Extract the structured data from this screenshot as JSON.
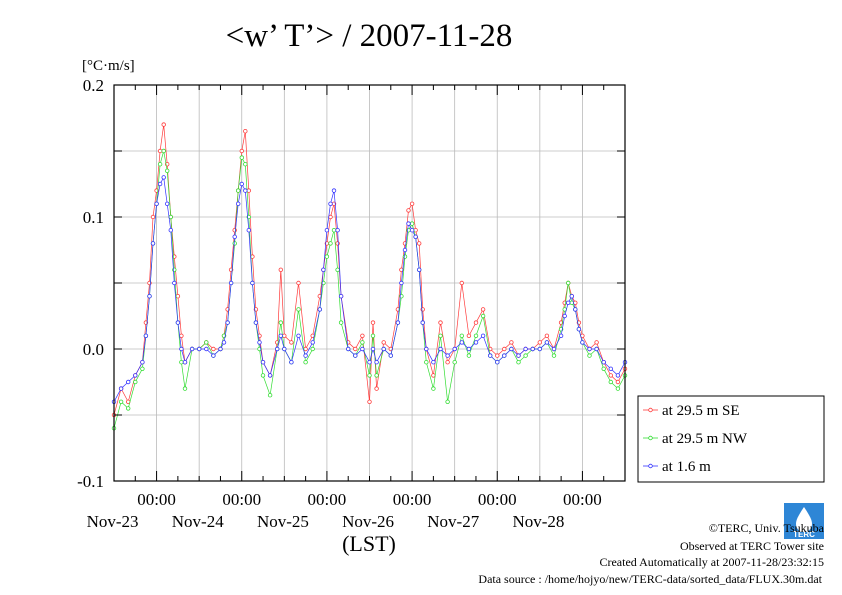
{
  "chart_data": {
    "type": "line",
    "title": "<w’ T’> / 2007-11-28",
    "ylabel": "[°C·m/s]",
    "xlabel": "(LST)",
    "ylim": [
      -0.1,
      0.2
    ],
    "yticks": [
      -0.1,
      0.0,
      0.1,
      0.2
    ],
    "ytick_labels": [
      "-0.1",
      "0.0",
      "0.1",
      "0.2"
    ],
    "xlim": [
      0,
      144
    ],
    "x_unit": "hours since Nov-22 12:00",
    "xticks": [
      12,
      36,
      60,
      84,
      108,
      132
    ],
    "xtick_time_label": "00:00",
    "xtick_date_labels": [
      "Nov-23",
      "Nov-24",
      "Nov-25",
      "Nov-26",
      "Nov-27",
      "Nov-28"
    ],
    "grid": true,
    "legend_position": "right",
    "series": [
      {
        "name": "at 29.5 m SE",
        "color": "#ff3b3b",
        "points": [
          [
            0,
            -0.05
          ],
          [
            2,
            -0.03
          ],
          [
            4,
            -0.04
          ],
          [
            6,
            -0.02
          ],
          [
            8,
            -0.01
          ],
          [
            9,
            0.02
          ],
          [
            10,
            0.05
          ],
          [
            11,
            0.1
          ],
          [
            12,
            0.12
          ],
          [
            13,
            0.15
          ],
          [
            14,
            0.17
          ],
          [
            15,
            0.14
          ],
          [
            16,
            0.1
          ],
          [
            17,
            0.07
          ],
          [
            18,
            0.04
          ],
          [
            19,
            0.01
          ],
          [
            20,
            -0.01
          ],
          [
            22,
            0.0
          ],
          [
            24,
            0.0
          ],
          [
            26,
            0.005
          ],
          [
            28,
            0.0
          ],
          [
            30,
            0.0
          ],
          [
            31,
            0.01
          ],
          [
            32,
            0.03
          ],
          [
            33,
            0.06
          ],
          [
            34,
            0.09
          ],
          [
            35,
            0.12
          ],
          [
            36,
            0.15
          ],
          [
            37,
            0.165
          ],
          [
            38,
            0.12
          ],
          [
            39,
            0.07
          ],
          [
            40,
            0.03
          ],
          [
            41,
            0.01
          ],
          [
            42,
            -0.01
          ],
          [
            44,
            -0.02
          ],
          [
            46,
            0.005
          ],
          [
            47,
            0.06
          ],
          [
            48,
            0.01
          ],
          [
            50,
            0.005
          ],
          [
            52,
            0.05
          ],
          [
            54,
            0.0
          ],
          [
            56,
            0.01
          ],
          [
            58,
            0.04
          ],
          [
            59,
            0.06
          ],
          [
            60,
            0.08
          ],
          [
            61,
            0.1
          ],
          [
            62,
            0.11
          ],
          [
            63,
            0.08
          ],
          [
            64,
            0.04
          ],
          [
            66,
            0.005
          ],
          [
            68,
            0.0
          ],
          [
            70,
            0.01
          ],
          [
            72,
            -0.04
          ],
          [
            73,
            0.02
          ],
          [
            74,
            -0.03
          ],
          [
            76,
            0.005
          ],
          [
            78,
            0.0
          ],
          [
            80,
            0.03
          ],
          [
            81,
            0.06
          ],
          [
            82,
            0.08
          ],
          [
            83,
            0.105
          ],
          [
            84,
            0.11
          ],
          [
            85,
            0.09
          ],
          [
            86,
            0.08
          ],
          [
            87,
            0.03
          ],
          [
            88,
            0.0
          ],
          [
            90,
            -0.02
          ],
          [
            92,
            0.02
          ],
          [
            94,
            -0.01
          ],
          [
            96,
            0.0
          ],
          [
            98,
            0.05
          ],
          [
            100,
            0.01
          ],
          [
            102,
            0.02
          ],
          [
            104,
            0.03
          ],
          [
            106,
            0.0
          ],
          [
            108,
            -0.005
          ],
          [
            110,
            0.0
          ],
          [
            112,
            0.005
          ],
          [
            114,
            -0.005
          ],
          [
            116,
            0.0
          ],
          [
            118,
            0.0
          ],
          [
            120,
            0.005
          ],
          [
            122,
            0.01
          ],
          [
            124,
            0.0
          ],
          [
            126,
            0.02
          ],
          [
            127,
            0.035
          ],
          [
            128,
            0.05
          ],
          [
            129,
            0.04
          ],
          [
            130,
            0.035
          ],
          [
            131,
            0.02
          ],
          [
            132,
            0.01
          ],
          [
            134,
            0.0
          ],
          [
            136,
            0.005
          ],
          [
            138,
            -0.01
          ],
          [
            140,
            -0.02
          ],
          [
            142,
            -0.025
          ],
          [
            144,
            -0.015
          ]
        ]
      },
      {
        "name": "at 29.5 m NW",
        "color": "#33dd33",
        "points": [
          [
            0,
            -0.06
          ],
          [
            2,
            -0.04
          ],
          [
            4,
            -0.045
          ],
          [
            6,
            -0.025
          ],
          [
            8,
            -0.015
          ],
          [
            9,
            0.01
          ],
          [
            10,
            0.04
          ],
          [
            11,
            0.08
          ],
          [
            12,
            0.11
          ],
          [
            13,
            0.14
          ],
          [
            14,
            0.15
          ],
          [
            15,
            0.135
          ],
          [
            16,
            0.1
          ],
          [
            17,
            0.06
          ],
          [
            18,
            0.02
          ],
          [
            19,
            -0.01
          ],
          [
            20,
            -0.03
          ],
          [
            22,
            0.0
          ],
          [
            24,
            0.0
          ],
          [
            26,
            0.005
          ],
          [
            28,
            -0.005
          ],
          [
            30,
            0.0
          ],
          [
            31,
            0.01
          ],
          [
            32,
            0.02
          ],
          [
            33,
            0.05
          ],
          [
            34,
            0.08
          ],
          [
            35,
            0.12
          ],
          [
            36,
            0.145
          ],
          [
            37,
            0.14
          ],
          [
            38,
            0.1
          ],
          [
            39,
            0.05
          ],
          [
            40,
            0.02
          ],
          [
            41,
            0.0
          ],
          [
            42,
            -0.02
          ],
          [
            44,
            -0.035
          ],
          [
            46,
            0.0
          ],
          [
            47,
            0.02
          ],
          [
            48,
            0.0
          ],
          [
            50,
            -0.01
          ],
          [
            52,
            0.03
          ],
          [
            54,
            -0.01
          ],
          [
            56,
            0.0
          ],
          [
            58,
            0.03
          ],
          [
            59,
            0.05
          ],
          [
            60,
            0.07
          ],
          [
            61,
            0.08
          ],
          [
            62,
            0.09
          ],
          [
            63,
            0.06
          ],
          [
            64,
            0.02
          ],
          [
            66,
            0.0
          ],
          [
            68,
            -0.005
          ],
          [
            70,
            0.005
          ],
          [
            72,
            -0.02
          ],
          [
            73,
            0.01
          ],
          [
            74,
            -0.02
          ],
          [
            76,
            0.0
          ],
          [
            78,
            -0.005
          ],
          [
            80,
            0.02
          ],
          [
            81,
            0.04
          ],
          [
            82,
            0.07
          ],
          [
            83,
            0.09
          ],
          [
            84,
            0.095
          ],
          [
            85,
            0.085
          ],
          [
            86,
            0.06
          ],
          [
            87,
            0.02
          ],
          [
            88,
            -0.01
          ],
          [
            90,
            -0.03
          ],
          [
            92,
            0.01
          ],
          [
            94,
            -0.04
          ],
          [
            96,
            -0.01
          ],
          [
            98,
            0.01
          ],
          [
            100,
            -0.005
          ],
          [
            102,
            0.01
          ],
          [
            104,
            0.025
          ],
          [
            106,
            -0.005
          ],
          [
            108,
            -0.01
          ],
          [
            110,
            -0.005
          ],
          [
            112,
            0.0
          ],
          [
            114,
            -0.01
          ],
          [
            116,
            -0.005
          ],
          [
            118,
            0.0
          ],
          [
            120,
            0.0
          ],
          [
            122,
            0.005
          ],
          [
            124,
            -0.005
          ],
          [
            126,
            0.015
          ],
          [
            127,
            0.03
          ],
          [
            128,
            0.05
          ],
          [
            129,
            0.035
          ],
          [
            130,
            0.03
          ],
          [
            131,
            0.015
          ],
          [
            132,
            0.005
          ],
          [
            134,
            -0.005
          ],
          [
            136,
            0.0
          ],
          [
            138,
            -0.015
          ],
          [
            140,
            -0.025
          ],
          [
            142,
            -0.03
          ],
          [
            144,
            -0.02
          ]
        ]
      },
      {
        "name": "at 1.6 m",
        "color": "#3333ff",
        "points": [
          [
            0,
            -0.04
          ],
          [
            2,
            -0.03
          ],
          [
            4,
            -0.025
          ],
          [
            6,
            -0.02
          ],
          [
            8,
            -0.01
          ],
          [
            9,
            0.01
          ],
          [
            10,
            0.04
          ],
          [
            11,
            0.08
          ],
          [
            12,
            0.11
          ],
          [
            13,
            0.125
          ],
          [
            14,
            0.13
          ],
          [
            15,
            0.11
          ],
          [
            16,
            0.09
          ],
          [
            17,
            0.05
          ],
          [
            18,
            0.02
          ],
          [
            19,
            0.0
          ],
          [
            20,
            -0.01
          ],
          [
            22,
            0.0
          ],
          [
            24,
            0.0
          ],
          [
            26,
            0.0
          ],
          [
            28,
            -0.005
          ],
          [
            30,
            0.0
          ],
          [
            31,
            0.005
          ],
          [
            32,
            0.02
          ],
          [
            33,
            0.05
          ],
          [
            34,
            0.085
          ],
          [
            35,
            0.11
          ],
          [
            36,
            0.125
          ],
          [
            37,
            0.12
          ],
          [
            38,
            0.09
          ],
          [
            39,
            0.05
          ],
          [
            40,
            0.02
          ],
          [
            41,
            0.005
          ],
          [
            42,
            -0.01
          ],
          [
            44,
            -0.02
          ],
          [
            46,
            0.0
          ],
          [
            47,
            0.01
          ],
          [
            48,
            0.0
          ],
          [
            50,
            -0.01
          ],
          [
            52,
            0.01
          ],
          [
            54,
            -0.005
          ],
          [
            56,
            0.005
          ],
          [
            58,
            0.03
          ],
          [
            59,
            0.06
          ],
          [
            60,
            0.09
          ],
          [
            61,
            0.11
          ],
          [
            62,
            0.12
          ],
          [
            63,
            0.09
          ],
          [
            64,
            0.04
          ],
          [
            66,
            0.0
          ],
          [
            68,
            -0.005
          ],
          [
            70,
            0.0
          ],
          [
            72,
            -0.01
          ],
          [
            73,
            0.0
          ],
          [
            74,
            -0.01
          ],
          [
            76,
            0.0
          ],
          [
            78,
            -0.005
          ],
          [
            80,
            0.02
          ],
          [
            81,
            0.05
          ],
          [
            82,
            0.075
          ],
          [
            83,
            0.095
          ],
          [
            84,
            0.09
          ],
          [
            85,
            0.085
          ],
          [
            86,
            0.06
          ],
          [
            87,
            0.02
          ],
          [
            88,
            0.0
          ],
          [
            90,
            -0.01
          ],
          [
            92,
            0.0
          ],
          [
            94,
            -0.005
          ],
          [
            96,
            0.0
          ],
          [
            98,
            0.005
          ],
          [
            100,
            0.0
          ],
          [
            102,
            0.005
          ],
          [
            104,
            0.01
          ],
          [
            106,
            -0.005
          ],
          [
            108,
            -0.01
          ],
          [
            110,
            -0.005
          ],
          [
            112,
            0.0
          ],
          [
            114,
            -0.005
          ],
          [
            116,
            0.0
          ],
          [
            118,
            0.0
          ],
          [
            120,
            0.0
          ],
          [
            122,
            0.005
          ],
          [
            124,
            0.0
          ],
          [
            126,
            0.01
          ],
          [
            127,
            0.025
          ],
          [
            128,
            0.035
          ],
          [
            129,
            0.04
          ],
          [
            130,
            0.03
          ],
          [
            131,
            0.015
          ],
          [
            132,
            0.005
          ],
          [
            134,
            0.0
          ],
          [
            136,
            0.0
          ],
          [
            138,
            -0.01
          ],
          [
            140,
            -0.015
          ],
          [
            142,
            -0.02
          ],
          [
            144,
            -0.01
          ]
        ]
      }
    ]
  },
  "footer": {
    "copyright": "©TERC, Univ. Tsukuba",
    "observed": "Observed at TERC Tower site",
    "created": "Created Automatically at 2007-11-28/23:32:15",
    "source": "Data source : /home/hojyo/new/TERC-data/sorted_data/FLUX.30m.dat"
  },
  "logo": {
    "text": "TERC",
    "color": "#2e86d6"
  }
}
